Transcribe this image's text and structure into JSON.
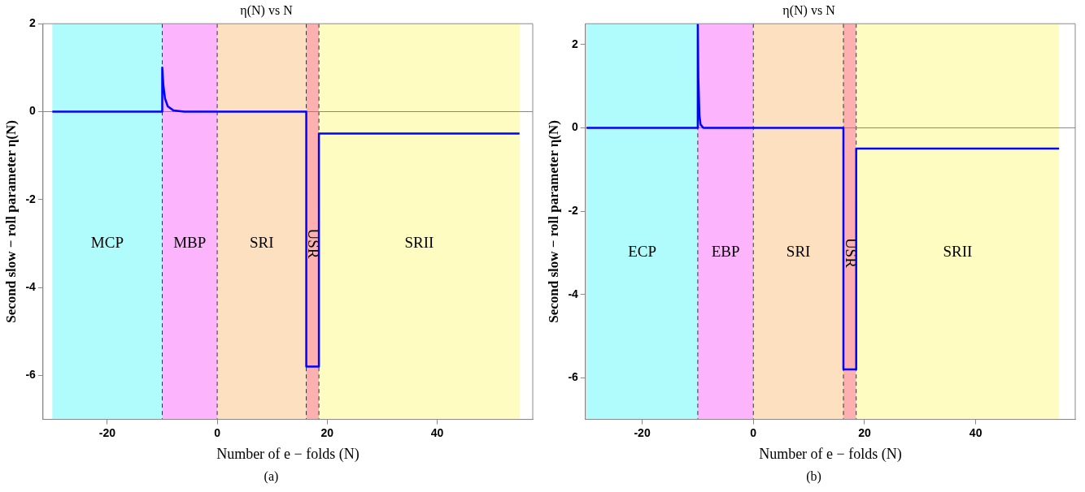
{
  "chart_data": [
    {
      "type": "line",
      "title": "η(N) vs N",
      "xlabel": "Number of e − folds (N)",
      "ylabel": "Second slow − roll parameter η(N)",
      "annotations": [
        "(a)"
      ],
      "x": [
        -30,
        -10,
        -10,
        -9.8,
        -9.5,
        -9,
        -8,
        -6,
        0,
        16.2,
        16.2,
        18.5,
        18.5,
        55
      ],
      "series": [
        {
          "color": "#0000ff",
          "values": [
            0,
            0,
            1,
            0.6,
            0.3,
            0.12,
            0.03,
            0,
            0,
            0,
            -5.8,
            -5.8,
            -0.5,
            -0.5
          ]
        }
      ],
      "xlim": [
        -31.7,
        57.4
      ],
      "ylim": [
        -7,
        2
      ],
      "xticks": [
        -20,
        0,
        20,
        40
      ],
      "yticks": [
        -6,
        -4,
        -2,
        0,
        2
      ],
      "grid": false,
      "legend": false,
      "marker": "none",
      "line_style": "solid",
      "bands": [
        {
          "axis": "x",
          "from": -30,
          "to": -10,
          "label": "MCP",
          "color": "#b0fcfc"
        },
        {
          "axis": "x",
          "from": -10,
          "to": 0,
          "label": "MBP",
          "color": "#fcb4fc"
        },
        {
          "axis": "x",
          "from": 0,
          "to": 16.2,
          "label": "SRI",
          "color": "#fde0c0"
        },
        {
          "axis": "x",
          "from": 16.2,
          "to": 18.5,
          "label": "USR",
          "color": "#fcb0b0"
        },
        {
          "axis": "x",
          "from": 18.5,
          "to": 55,
          "label": "SRII",
          "color": "#fefcc0"
        }
      ],
      "ref_lines": [
        {
          "axis": "x",
          "value": -10,
          "color": "#333333",
          "line_style": "dashed"
        },
        {
          "axis": "x",
          "value": 0,
          "color": "#333333",
          "line_style": "dashed"
        },
        {
          "axis": "x",
          "value": 16.2,
          "color": "#333333",
          "line_style": "dashed"
        },
        {
          "axis": "x",
          "value": 18.5,
          "color": "#333333",
          "line_style": "dashed"
        },
        {
          "axis": "y",
          "value": 0,
          "color": "#888888",
          "line_style": "solid"
        }
      ]
    },
    {
      "type": "line",
      "title": "η(N) vs N",
      "xlabel": "Number of e − folds (N)",
      "ylabel": "Second slow − roll parameter η(N)",
      "annotations": [
        "(b)"
      ],
      "x": [
        -30,
        -10,
        -10,
        -9.9,
        -9.7,
        -9.5,
        -9,
        -6,
        0,
        16.2,
        16.2,
        18.5,
        18.5,
        55
      ],
      "series": [
        {
          "color": "#0000ff",
          "values": [
            0,
            0,
            2.5,
            1.2,
            0.3,
            0.08,
            0,
            0,
            0,
            0,
            -5.8,
            -5.8,
            -0.5,
            -0.5
          ]
        }
      ],
      "xlim": [
        -30.2,
        57.9
      ],
      "ylim": [
        -7,
        2.5
      ],
      "xticks": [
        -20,
        0,
        20,
        40
      ],
      "yticks": [
        -6,
        -4,
        -2,
        0,
        2
      ],
      "grid": false,
      "legend": false,
      "marker": "none",
      "line_style": "solid",
      "bands": [
        {
          "axis": "x",
          "from": -30,
          "to": -10,
          "label": "ECP",
          "color": "#b0fcfc"
        },
        {
          "axis": "x",
          "from": -10,
          "to": 0,
          "label": "EBP",
          "color": "#fcb4fc"
        },
        {
          "axis": "x",
          "from": 0,
          "to": 16.2,
          "label": "SRI",
          "color": "#fde0c0"
        },
        {
          "axis": "x",
          "from": 16.2,
          "to": 18.5,
          "label": "USR",
          "color": "#fcb0b0"
        },
        {
          "axis": "x",
          "from": 18.5,
          "to": 55,
          "label": "SRII",
          "color": "#fefcc0"
        }
      ],
      "ref_lines": [
        {
          "axis": "x",
          "value": -10,
          "color": "#333333",
          "line_style": "dashed"
        },
        {
          "axis": "x",
          "value": 0,
          "color": "#333333",
          "line_style": "dashed"
        },
        {
          "axis": "x",
          "value": 16.2,
          "color": "#333333",
          "line_style": "dashed"
        },
        {
          "axis": "x",
          "value": 18.5,
          "color": "#333333",
          "line_style": "dashed"
        },
        {
          "axis": "y",
          "value": 0,
          "color": "#888888",
          "line_style": "solid"
        }
      ]
    }
  ]
}
